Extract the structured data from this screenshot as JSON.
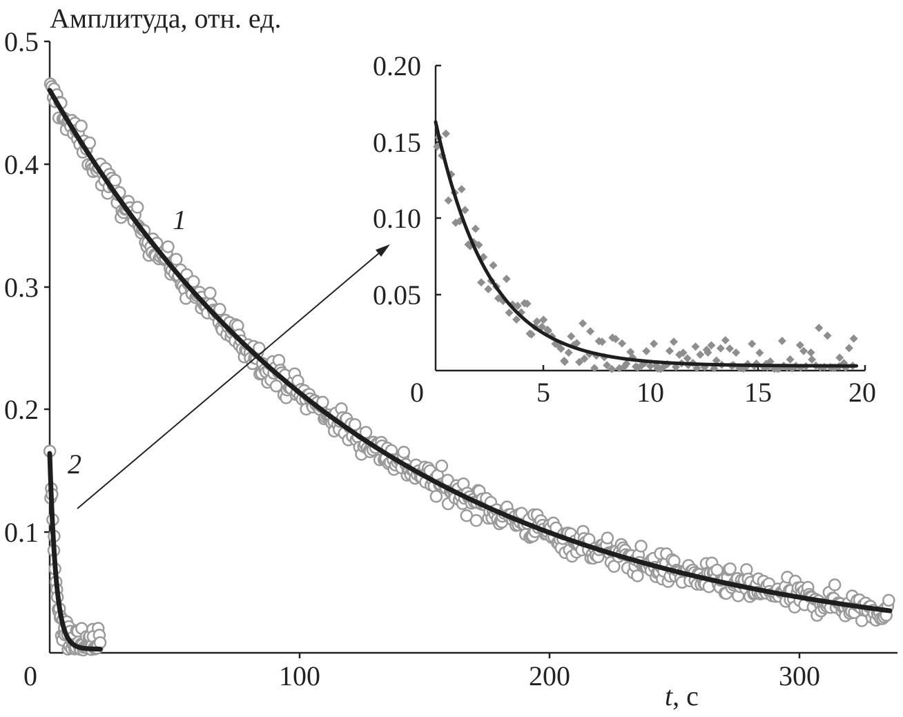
{
  "chart_data": [
    {
      "type": "scatter",
      "ylabel": "Амплитуда, отн. ед.",
      "xlabel_italic": "t",
      "xlabel_rest": ", с",
      "xlim": [
        0,
        335
      ],
      "ylim": [
        0,
        0.5
      ],
      "x_ticks": [
        "0",
        "100",
        "200",
        "300"
      ],
      "y_ticks": [
        "0.1",
        "0.2",
        "0.3",
        "0.4",
        "0.5"
      ],
      "series": [
        {
          "name": "1",
          "marker": "open-circle",
          "x_range": [
            0,
            332
          ],
          "fit": {
            "model": "a*exp(-t/tau)",
            "a": 0.46,
            "tau": 128
          },
          "noise": 0.006,
          "x": [
            0,
            20,
            40,
            60,
            80,
            100,
            120,
            140,
            160,
            180,
            200,
            220,
            240,
            260,
            280,
            300,
            320,
            332
          ],
          "y": [
            0.46,
            0.395,
            0.337,
            0.289,
            0.247,
            0.211,
            0.18,
            0.154,
            0.132,
            0.113,
            0.096,
            0.082,
            0.071,
            0.06,
            0.052,
            0.044,
            0.038,
            0.035
          ]
        },
        {
          "name": "2",
          "marker": "open-circle",
          "x_range": [
            0,
            20
          ],
          "fit": {
            "model": "a*exp(-t/tau)+c",
            "a": 0.16,
            "tau": 2.5,
            "c": 0.003
          },
          "noise": 0.008,
          "x": [
            0,
            2,
            4,
            6,
            8,
            10,
            12,
            14,
            16,
            18,
            20
          ],
          "y": [
            0.163,
            0.074,
            0.035,
            0.017,
            0.01,
            0.006,
            0.005,
            0.004,
            0.004,
            0.003,
            0.003
          ]
        }
      ],
      "annotations": [
        "1",
        "2"
      ]
    },
    {
      "type": "scatter",
      "xlim": [
        0,
        20
      ],
      "ylim": [
        0,
        0.2
      ],
      "x_ticks": [
        "0",
        "5",
        "10",
        "15",
        "20"
      ],
      "y_ticks": [
        "0.05",
        "0.10",
        "0.15",
        "0.20"
      ],
      "series": [
        {
          "marker": "filled-diamond",
          "x_range": [
            0,
            19.6
          ],
          "fit": {
            "model": "a*exp(-t/tau)+c",
            "a": 0.16,
            "tau": 2.5,
            "c": 0.003
          },
          "noise": 0.009,
          "x": [
            0,
            1,
            2,
            3,
            4,
            5,
            6,
            8,
            10,
            12,
            14,
            16,
            18,
            20
          ],
          "y": [
            0.163,
            0.109,
            0.074,
            0.05,
            0.035,
            0.024,
            0.017,
            0.01,
            0.006,
            0.005,
            0.004,
            0.004,
            0.003,
            0.003
          ]
        }
      ]
    }
  ]
}
